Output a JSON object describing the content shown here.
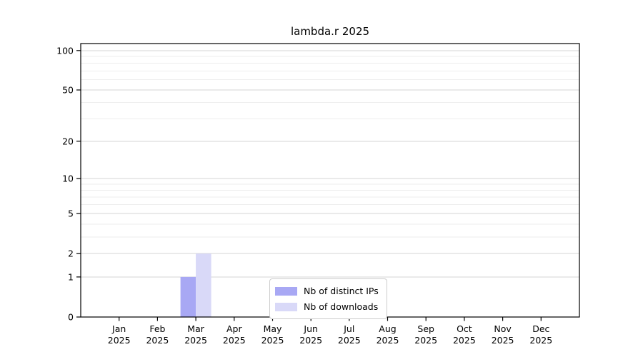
{
  "title": "lambda.r 2025",
  "chart_data": {
    "type": "bar",
    "title": "lambda.r 2025",
    "categories": [
      "Jan",
      "Feb",
      "Mar",
      "Apr",
      "May",
      "Jun",
      "Jul",
      "Aug",
      "Sep",
      "Oct",
      "Nov",
      "Dec"
    ],
    "category_year": "2025",
    "series": [
      {
        "name": "Nb of distinct IPs",
        "color": "#a8a8f4",
        "values": [
          0,
          0,
          1,
          0,
          0,
          0,
          0,
          0,
          0,
          0,
          0,
          0
        ]
      },
      {
        "name": "Nb of downloads",
        "color": "#d9d9f8",
        "values": [
          0,
          0,
          2,
          0,
          0,
          0,
          0,
          0,
          0,
          0,
          0,
          0
        ]
      }
    ],
    "y_scale": "log1p",
    "y_axis_ticks": [
      0,
      1,
      2,
      5,
      10,
      20,
      50,
      100
    ],
    "y_minor_gridlines": [
      3,
      4,
      6,
      7,
      8,
      9,
      30,
      40,
      60,
      70,
      80,
      90
    ],
    "ylim": [
      0,
      113
    ],
    "xlabel": "",
    "ylabel": "",
    "grid": "horizontal",
    "legend_position": "inside-bottom-center",
    "colors": {
      "major_grid": "#d4d4d4",
      "minor_grid": "#eeeeee",
      "spine": "#000000",
      "background": "#ffffff"
    }
  },
  "legend": {
    "items": [
      {
        "label": "Nb of distinct IPs",
        "color": "#a8a8f4"
      },
      {
        "label": "Nb of downloads",
        "color": "#d9d9f8"
      }
    ]
  }
}
